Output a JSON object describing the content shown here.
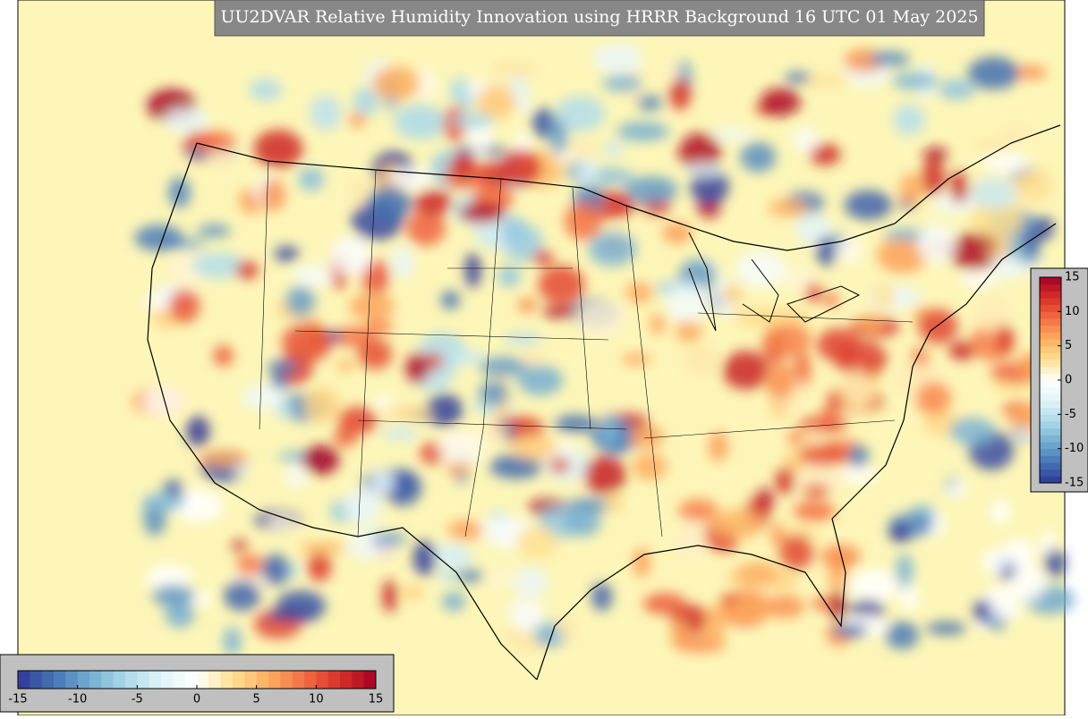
{
  "title": "UU2DVAR Relative Humidity Innovation using HRRR Background 16 UTC 01 May 2025",
  "colorbar_vertical": {
    "lim": [
      -15,
      15
    ],
    "ticks": [
      -15,
      -10,
      -5,
      0,
      5,
      10,
      15
    ]
  },
  "colorbar_horizontal": {
    "lim": [
      -15,
      15
    ],
    "ticks": [
      -15,
      -10,
      -5,
      0,
      5,
      10,
      15
    ]
  },
  "colormap": [
    "#313695",
    "#4575b4",
    "#74add1",
    "#abd9e9",
    "#e0f3f8",
    "#ffffff",
    "#fee090",
    "#fdae61",
    "#f46d43",
    "#d73027",
    "#a50026"
  ]
}
